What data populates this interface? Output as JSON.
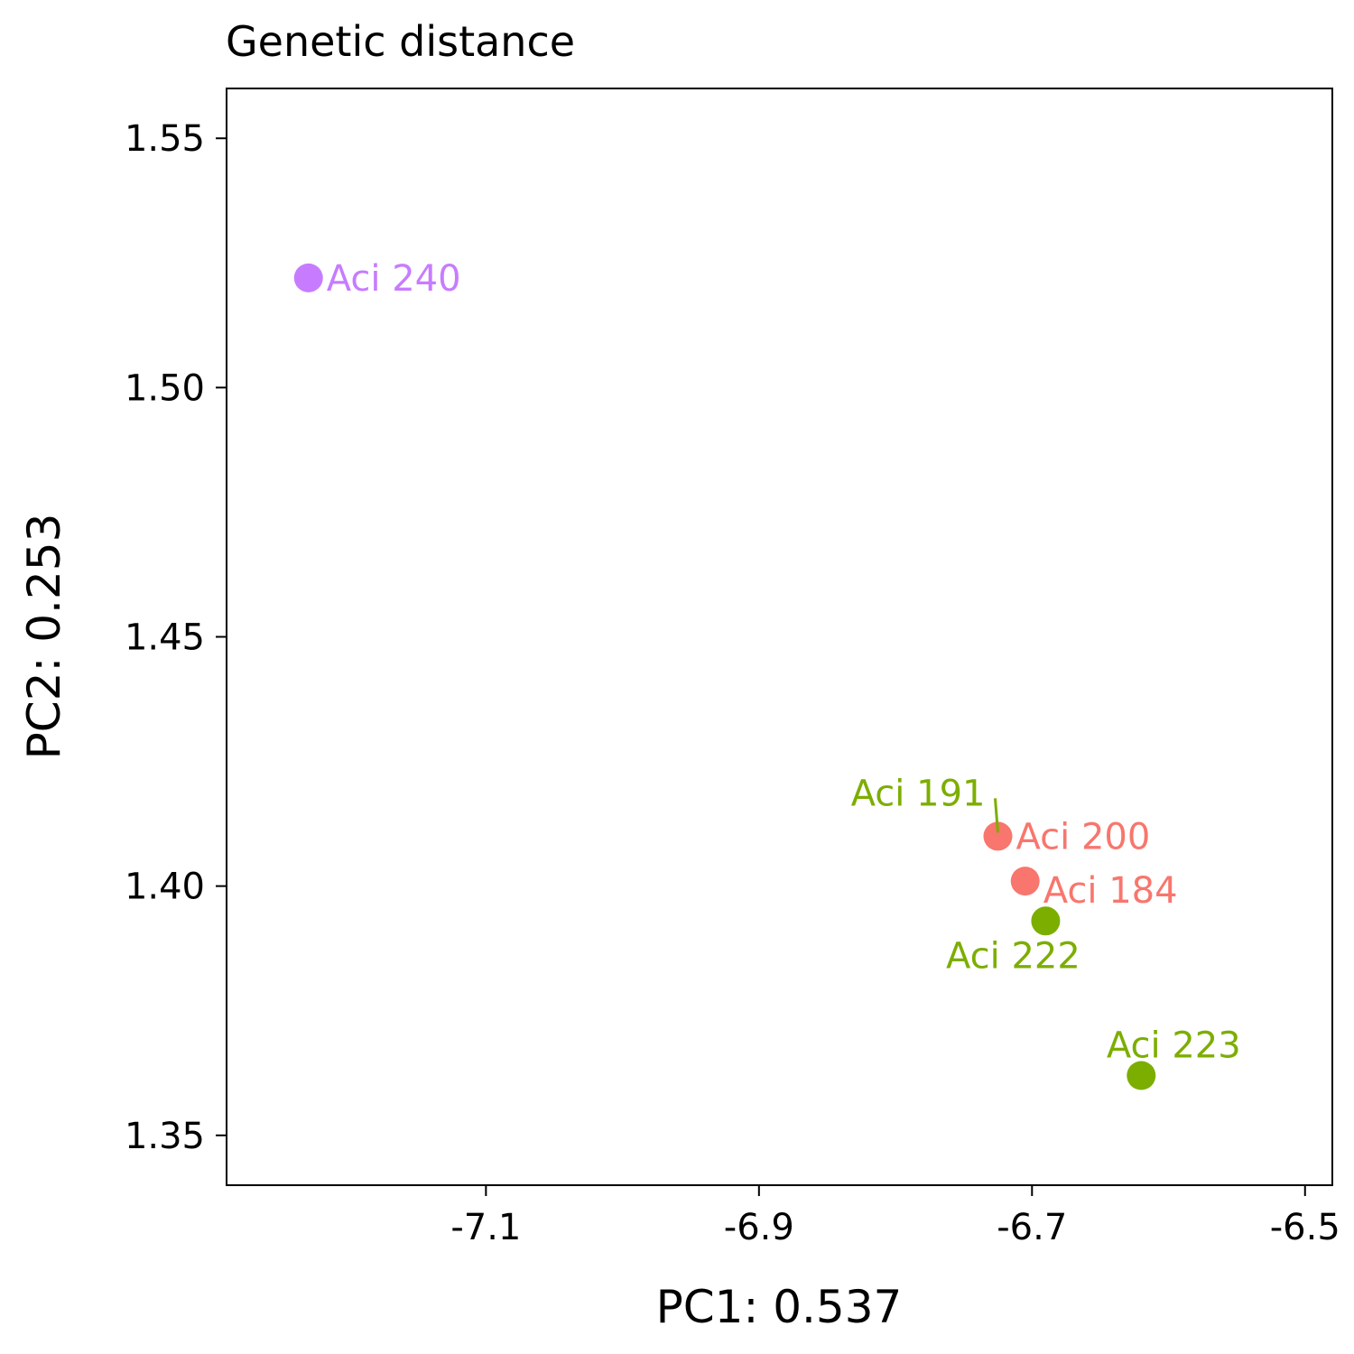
{
  "chart_data": {
    "type": "scatter",
    "title": "Genetic distance",
    "xlabel": "PC1: 0.537",
    "ylabel": "PC2: 0.253",
    "xlim": [
      -7.29,
      -6.48
    ],
    "ylim": [
      1.34,
      1.56
    ],
    "xticks": [
      {
        "value": -7.1,
        "label": "-7.1"
      },
      {
        "value": -6.9,
        "label": "-6.9"
      },
      {
        "value": -6.7,
        "label": "-6.7"
      },
      {
        "value": -6.5,
        "label": "-6.5"
      }
    ],
    "yticks": [
      {
        "value": 1.35,
        "label": "1.35"
      },
      {
        "value": 1.4,
        "label": "1.40"
      },
      {
        "value": 1.45,
        "label": "1.45"
      },
      {
        "value": 1.5,
        "label": "1.50"
      },
      {
        "value": 1.55,
        "label": "1.55"
      }
    ],
    "grid": false,
    "legend": "none",
    "colors": {
      "group_a": "#F8766D",
      "group_b": "#7CAE00",
      "group_c": "#C77CFF"
    },
    "points": [
      {
        "label": "Aci 240",
        "x": -7.23,
        "y": 1.522,
        "color": "#C77CFF",
        "label_side": "right"
      },
      {
        "label": "Aci 200",
        "x": -6.725,
        "y": 1.41,
        "color": "#F8766D",
        "label_side": "right"
      },
      {
        "label": "Aci 184",
        "x": -6.705,
        "y": 1.401,
        "color": "#F8766D",
        "label_side": "right-below"
      },
      {
        "label": "Aci 222",
        "x": -6.69,
        "y": 1.393,
        "color": "#7CAE00",
        "label_side": "below-left"
      },
      {
        "label": "Aci 223",
        "x": -6.62,
        "y": 1.362,
        "color": "#7CAE00",
        "label_side": "above"
      },
      {
        "label": "Aci 191",
        "x": -6.725,
        "y": 1.41,
        "color": "#7CAE00",
        "label_side": "above-left",
        "hidden_point": true
      }
    ]
  }
}
